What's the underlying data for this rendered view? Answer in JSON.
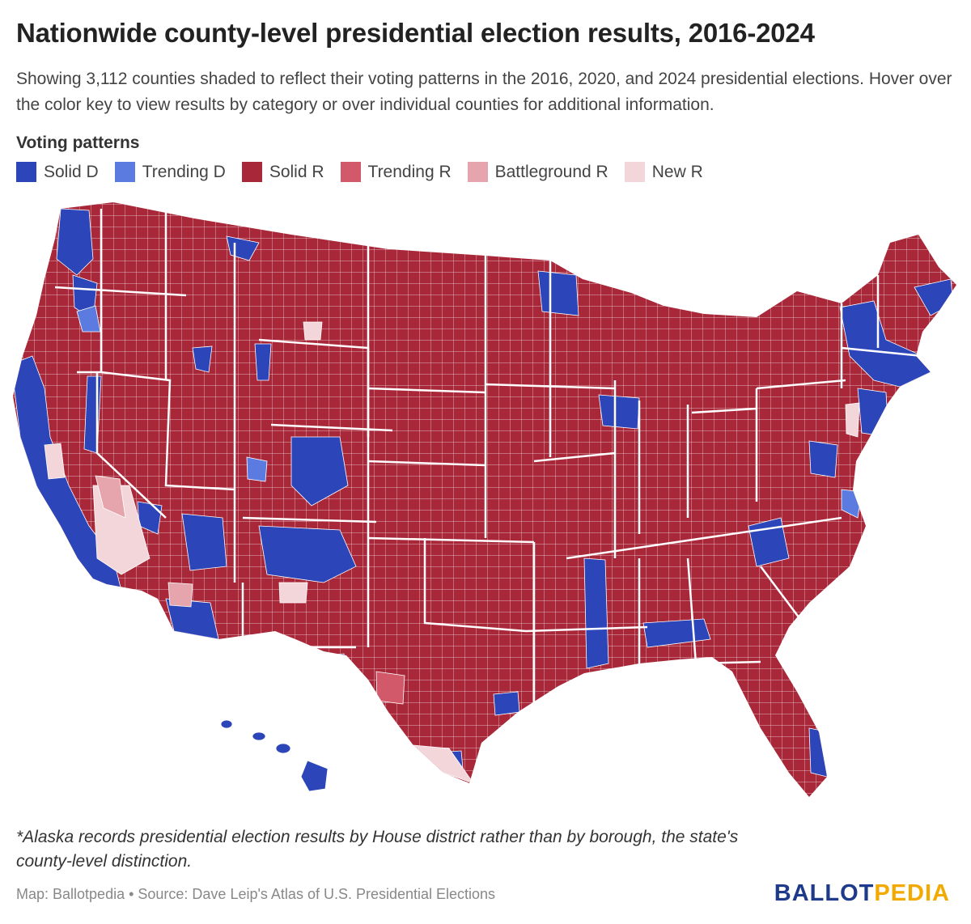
{
  "header": {
    "title": "Nationwide county-level presidential election results, 2016-2024",
    "subtitle": "Showing 3,112 counties shaded to reflect their voting patterns in the 2016, 2020, and 2024 presidential elections. Hover over the color key to view results by category or over individual counties for additional information."
  },
  "legend": {
    "title": "Voting patterns",
    "items": [
      {
        "label": "Solid D",
        "color": "#2c45b8"
      },
      {
        "label": "Trending D",
        "color": "#5b7be0"
      },
      {
        "label": "Solid R",
        "color": "#a8283a"
      },
      {
        "label": "Trending R",
        "color": "#d1596a"
      },
      {
        "label": "Battleground R",
        "color": "#e6a4ac"
      },
      {
        "label": "New R",
        "color": "#f3d6da"
      }
    ]
  },
  "map": {
    "colors": {
      "solid_d": "#2c45b8",
      "trending_d": "#5b7be0",
      "solid_r": "#a8283a",
      "trending_r": "#d1596a",
      "battleground_r": "#e6a4ac",
      "new_r": "#f3d6da",
      "border": "#ffffff"
    }
  },
  "footer": {
    "footnote": "*Alaska records presidential election results by House district rather than by borough, the state's county-level distinction.",
    "source": "Map: Ballotpedia • Source: Dave Leip's Atlas of U.S. Presidential Elections",
    "logo_part1": "BALLOT",
    "logo_part2": "PEDIA"
  }
}
